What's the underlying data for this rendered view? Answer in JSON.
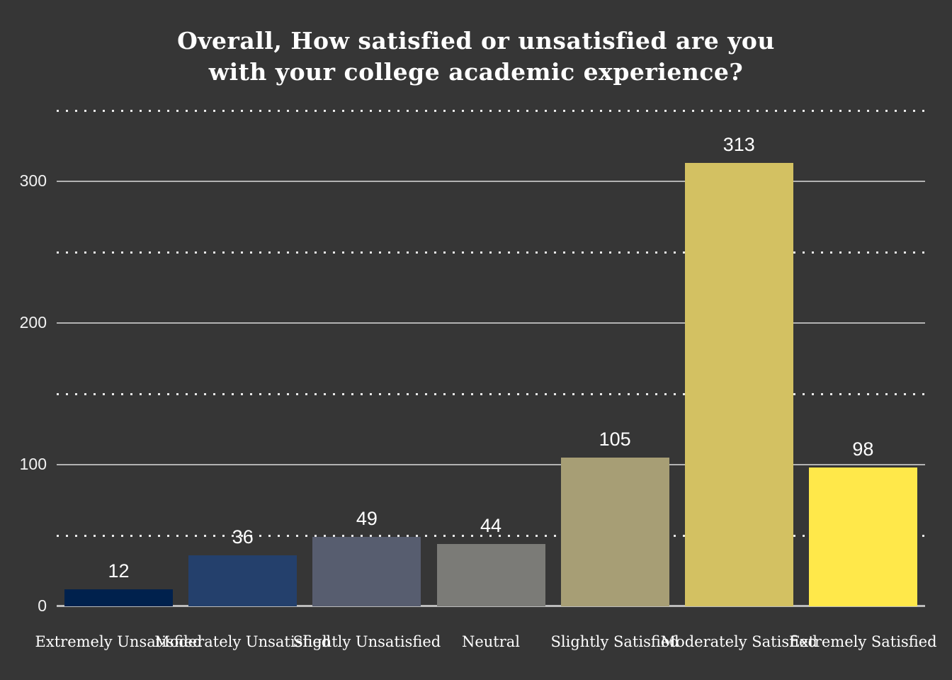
{
  "chart_data": {
    "type": "bar",
    "title_lines": [
      "Overall, How satisfied or unsatisfied are you",
      "with your college academic experience?"
    ],
    "title": "Overall, How satisfied or unsatisfied are you with your college academic experience?",
    "categories": [
      "Extremely Unsatisfied",
      "Moderately Unsatisfied",
      "Slightly Unsatisfied",
      "Neutral",
      "Slightly Satisfied",
      "Moderately Satisfied",
      "Extremely Satisfied"
    ],
    "values": [
      12,
      36,
      49,
      44,
      105,
      313,
      98
    ],
    "value_labels": [
      "12",
      "36",
      "49",
      "44",
      "105",
      "313",
      "98"
    ],
    "bar_colors": [
      "#00214d",
      "#24406c",
      "#575d6f",
      "#7b7b77",
      "#a79e75",
      "#d3c162",
      "#ffe84a"
    ],
    "xlabel": "",
    "ylabel": "",
    "ylim": [
      0,
      350
    ],
    "yticks_solid": [
      0,
      100,
      200,
      300
    ],
    "yticks_dotted": [
      50,
      150,
      250,
      350
    ],
    "ytick_labels": [
      "0",
      "100",
      "200",
      "300"
    ],
    "grid": true,
    "legend_position": "none"
  },
  "colors": {
    "background": "#363636",
    "title_text": "#ffffff",
    "axis_text": "#f2f2f2",
    "grid_solid": "#b3b3b3",
    "grid_dotted": "#e9e9e9"
  }
}
